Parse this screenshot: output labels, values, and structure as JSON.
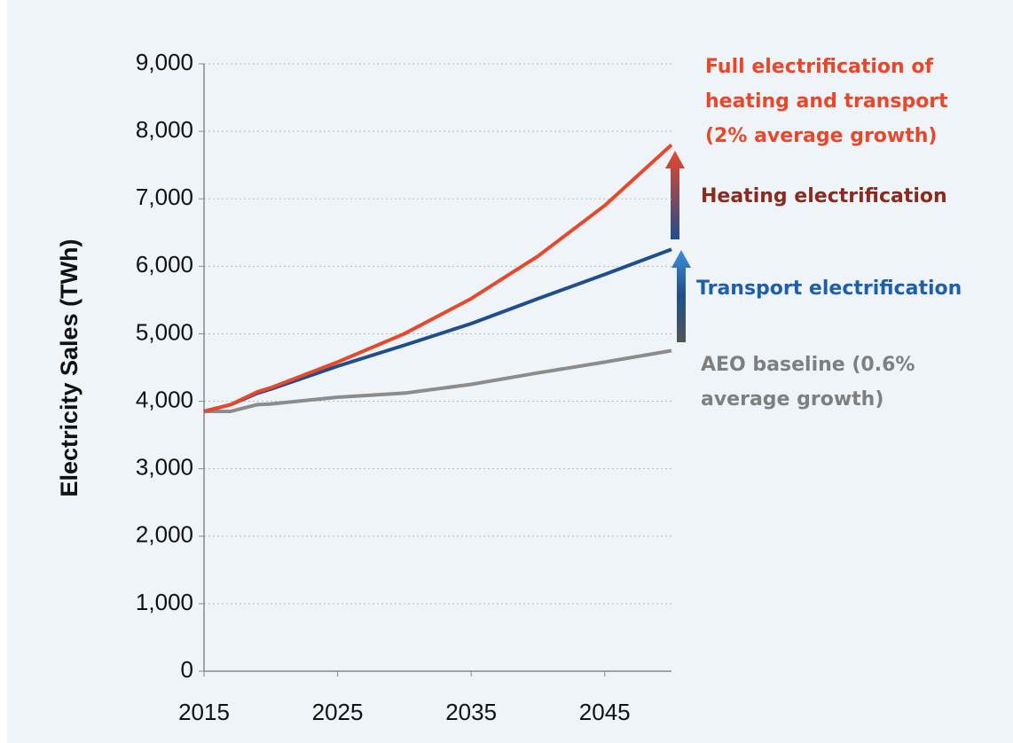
{
  "chart_data": {
    "type": "line",
    "y_label": "Electricity Sales (TWh)",
    "x": [
      2015,
      2017,
      2019,
      2020,
      2025,
      2030,
      2035,
      2040,
      2045,
      2050
    ],
    "xlim": [
      2015,
      2050
    ],
    "xticks": [
      2015,
      2025,
      2035,
      2045
    ],
    "ylim": [
      0,
      9000
    ],
    "yticks": [
      0,
      {
        "value": 1000,
        "label": "1,000"
      },
      {
        "value": 2000,
        "label": "2,000"
      },
      {
        "value": 3000,
        "label": "3,000"
      },
      {
        "value": 4000,
        "label": "4,000"
      },
      {
        "value": 5000,
        "label": "5,000"
      },
      {
        "value": 6000,
        "label": "6,000"
      },
      {
        "value": 7000,
        "label": "7,000"
      },
      {
        "value": 8000,
        "label": "8,000"
      },
      {
        "value": 9000,
        "label": "9,000"
      }
    ],
    "grid": true,
    "series": [
      {
        "color": "#8c8c8c",
        "values": [
          3850,
          3850,
          3950,
          3960,
          4060,
          4120,
          4250,
          4420,
          4580,
          4750
        ]
      },
      {
        "color": "#1f4e8c",
        "values": [
          3850,
          3950,
          4120,
          4180,
          4520,
          4830,
          5150,
          5520,
          5880,
          6250
        ]
      },
      {
        "color": "#e8472b",
        "values": [
          3850,
          3950,
          4140,
          4200,
          4580,
          5000,
          5520,
          6150,
          6900,
          7800
        ]
      }
    ],
    "annotations": {
      "full": {
        "color": "#e8472b",
        "lines": [
          "Full electrification of",
          "heating and transport",
          "(2% average growth)"
        ]
      },
      "heating": {
        "color": "#8b2a1f",
        "lines": [
          "Heating electrification"
        ]
      },
      "transport": {
        "color": "#1f5ea8",
        "lines": [
          "Transport electrification"
        ]
      },
      "baseline": {
        "color": "#7f7f7f",
        "lines": [
          "AEO baseline (0.6%",
          "average growth)"
        ]
      }
    }
  }
}
